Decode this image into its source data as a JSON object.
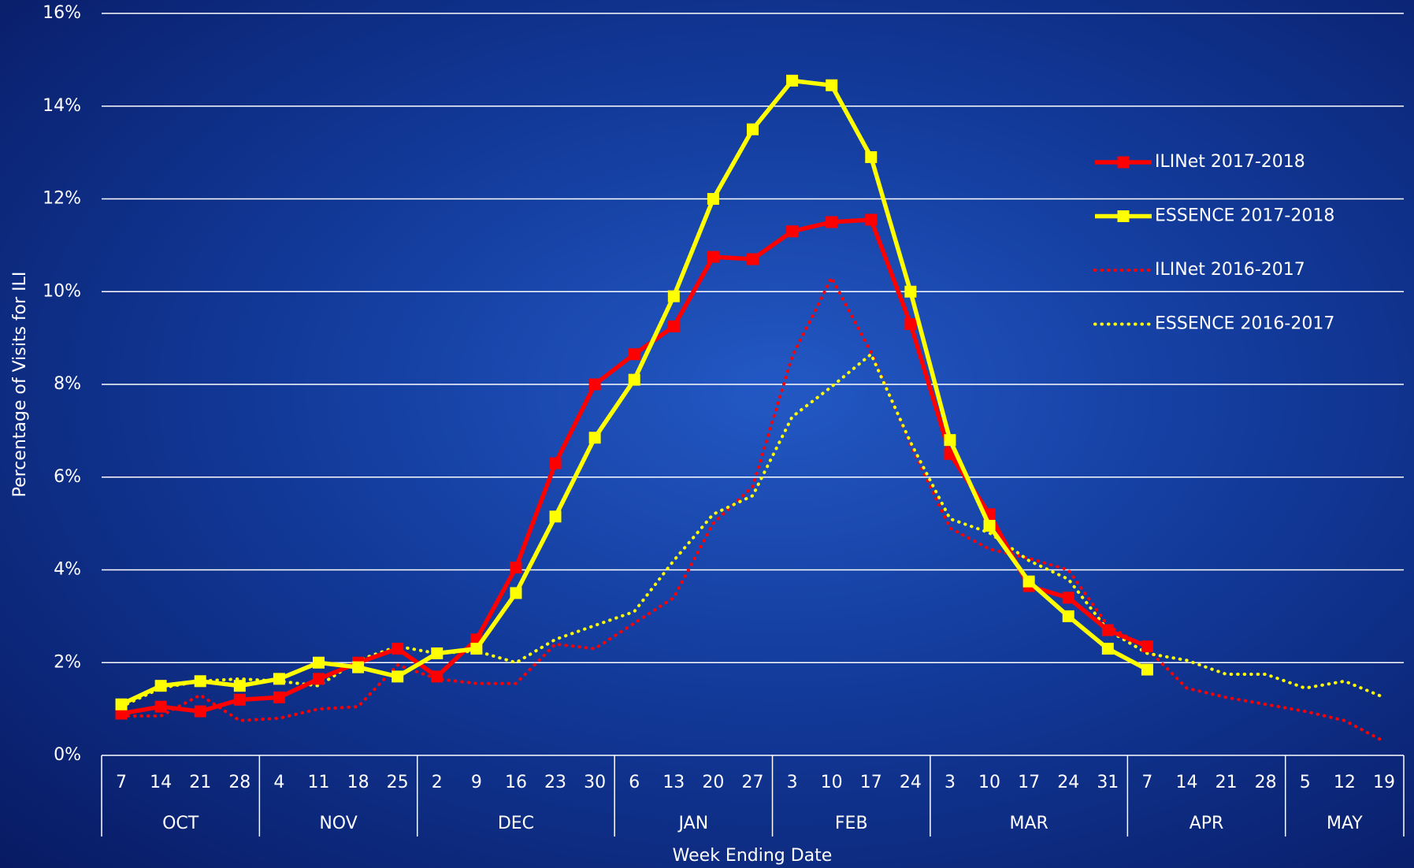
{
  "chart_data": {
    "type": "line",
    "xlabel": "Week Ending Date",
    "ylabel": "Percentage of Visits for ILI",
    "categories": [
      "7",
      "14",
      "21",
      "28",
      "4",
      "11",
      "18",
      "25",
      "2",
      "9",
      "16",
      "23",
      "30",
      "6",
      "13",
      "20",
      "27",
      "3",
      "10",
      "17",
      "24",
      "3",
      "10",
      "17",
      "24",
      "31",
      "7",
      "14",
      "21",
      "28",
      "5",
      "12",
      "19"
    ],
    "months": [
      "OCT",
      "NOV",
      "DEC",
      "JAN",
      "FEB",
      "MAR",
      "APR",
      "MAY"
    ],
    "ylim": [
      0,
      16
    ],
    "yticks": [
      {
        "value": 0,
        "label": "0%"
      },
      {
        "value": 2,
        "label": "2%"
      },
      {
        "value": 4,
        "label": "4%"
      },
      {
        "value": 6,
        "label": "6%"
      },
      {
        "value": 8,
        "label": "8%"
      },
      {
        "value": 10,
        "label": "10%"
      },
      {
        "value": 12,
        "label": "12%"
      },
      {
        "value": 14,
        "label": "14%"
      },
      {
        "value": 16,
        "label": "16%"
      }
    ],
    "grid": true,
    "legend": "right",
    "series": [
      {
        "name": "ILINet 2017-2018",
        "color": "#ff0000",
        "style": "solid",
        "values": [
          0.9,
          1.05,
          0.95,
          1.2,
          1.25,
          1.65,
          2.0,
          2.3,
          1.7,
          2.5,
          4.05,
          6.3,
          8.0,
          8.65,
          9.25,
          10.75,
          10.7,
          11.3,
          11.5,
          11.55,
          9.3,
          6.5,
          5.2,
          3.65,
          3.4,
          2.7,
          2.35,
          null,
          null,
          null,
          null,
          null,
          null
        ]
      },
      {
        "name": "ESSENCE 2017-2018",
        "color": "#ffff00",
        "style": "solid",
        "values": [
          1.1,
          1.5,
          1.6,
          1.5,
          1.65,
          2.0,
          1.9,
          1.7,
          2.2,
          2.3,
          3.5,
          5.15,
          6.85,
          8.1,
          9.9,
          12.0,
          13.5,
          14.55,
          14.45,
          12.9,
          10.0,
          6.8,
          4.95,
          3.75,
          3.0,
          2.3,
          1.85,
          null,
          null,
          null,
          null,
          null,
          null
        ]
      },
      {
        "name": "ILINet 2016-2017",
        "color": "#ff0000",
        "style": "dotted",
        "values": [
          0.85,
          0.85,
          1.3,
          0.75,
          0.8,
          1.0,
          1.05,
          1.95,
          1.65,
          1.55,
          1.55,
          2.4,
          2.3,
          2.85,
          3.4,
          5.0,
          5.8,
          8.6,
          10.3,
          8.7,
          6.7,
          4.9,
          4.45,
          4.25,
          4.0,
          2.8,
          2.3,
          1.45,
          1.25,
          1.1,
          0.95,
          0.75,
          0.3
        ]
      },
      {
        "name": "ESSENCE 2016-2017",
        "color": "#ffff00",
        "style": "dotted",
        "values": [
          1.05,
          1.45,
          1.6,
          1.65,
          1.6,
          1.5,
          2.05,
          2.35,
          2.2,
          2.25,
          2.0,
          2.5,
          2.8,
          3.1,
          4.2,
          5.2,
          5.6,
          7.3,
          7.95,
          8.65,
          6.75,
          5.1,
          4.8,
          4.2,
          3.8,
          2.7,
          2.2,
          2.05,
          1.75,
          1.75,
          1.45,
          1.6,
          1.25
        ]
      }
    ]
  }
}
